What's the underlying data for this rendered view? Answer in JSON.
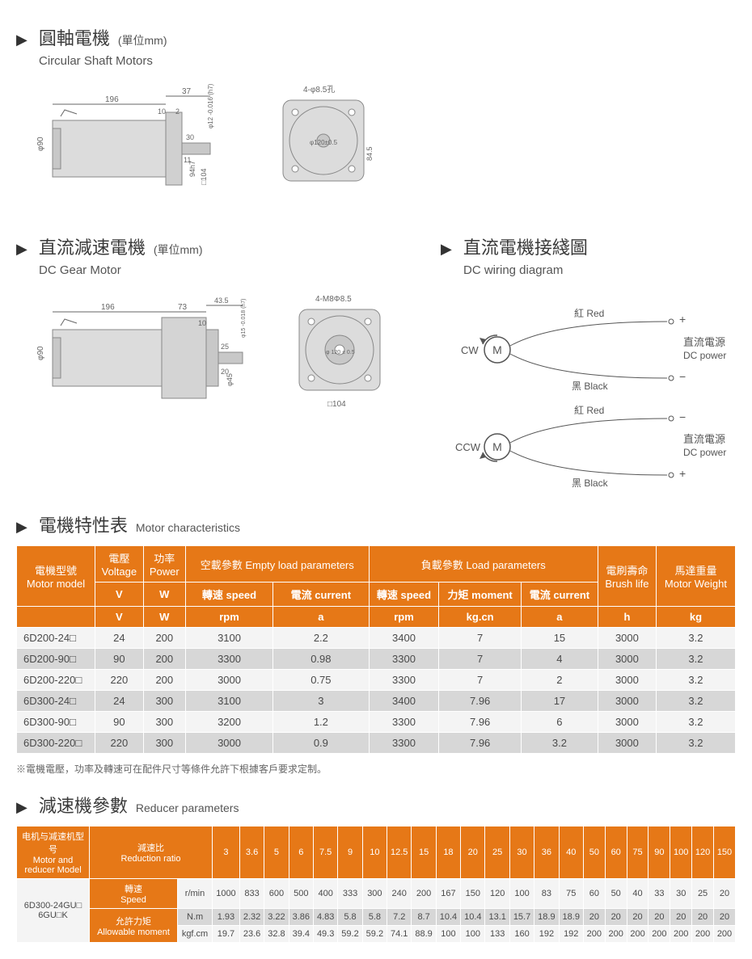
{
  "section1": {
    "title_cn": "圓軸電機",
    "unit": "(單位mm)",
    "title_en": "Circular Shaft Motors",
    "dims": {
      "len_total": "196",
      "len_flange": "37",
      "len_a": "10",
      "len_b": "2",
      "len_shaft": "30",
      "shaft_tol": "φ12 -0.016 (h7)",
      "shaft_h": "11",
      "flange_h": "94h7",
      "body_d": "φ90",
      "flange_sq": "□104",
      "holes": "4-φ8.5孔",
      "pcd": "φ120±0.5",
      "face_w": "84.5"
    }
  },
  "section2": {
    "title_cn": "直流減速電機",
    "unit": "(單位mm)",
    "title_en": "DC Gear Motor",
    "dims": {
      "len_total": "196",
      "len_gear": "73",
      "len_flange": "43.5",
      "len_a": "10",
      "len_shaft": "25",
      "shaft_tol": "φ15 -0.018 (h7)",
      "shaft_h": "20",
      "boss_d": "φ45",
      "body_d": "φ90",
      "flange_sq": "□104",
      "holes": "4-M8Φ8.5",
      "pcd": "φ 120 ± 0.5"
    }
  },
  "section3": {
    "title_cn": "直流電機接綫圖",
    "title_en": "DC wiring diagram",
    "labels": {
      "red": "紅 Red",
      "black": "黑 Black",
      "power_cn": "直流電源",
      "power_en": "DC power",
      "cw": "CW",
      "ccw": "CCW",
      "motor": "M",
      "plus": "+",
      "minus": "−"
    }
  },
  "section4": {
    "title_cn": "電機特性表",
    "title_en": "Motor characteristics",
    "headers": {
      "model_cn": "電機型號",
      "model_en": "Motor model",
      "voltage_cn": "電壓",
      "voltage_en": "Voltage",
      "power_cn": "功率",
      "power_en": "Power",
      "empty_cn": "空載參數 Empty load parameters",
      "load_cn": "負載參數 Load parameters",
      "speed_cn": "轉速 speed",
      "current_cn": "電流 current",
      "moment_cn": "力矩 moment",
      "brush_cn": "電刷壽命",
      "brush_en": "Brush life",
      "weight_cn": "馬達重量",
      "weight_en": "Motor Weight",
      "unit_v": "V",
      "unit_w": "W",
      "unit_rpm": "rpm",
      "unit_a": "a",
      "unit_kgcn": "kg.cn",
      "unit_h": "h",
      "unit_kg": "kg"
    },
    "rows": [
      {
        "model": "6D200-24□",
        "v": "24",
        "w": "200",
        "es": "3100",
        "ec": "2.2",
        "ls": "3400",
        "lm": "7",
        "lc": "15",
        "bl": "3000",
        "wt": "3.2"
      },
      {
        "model": "6D200-90□",
        "v": "90",
        "w": "200",
        "es": "3300",
        "ec": "0.98",
        "ls": "3300",
        "lm": "7",
        "lc": "4",
        "bl": "3000",
        "wt": "3.2"
      },
      {
        "model": "6D200-220□",
        "v": "220",
        "w": "200",
        "es": "3000",
        "ec": "0.75",
        "ls": "3300",
        "lm": "7",
        "lc": "2",
        "bl": "3000",
        "wt": "3.2"
      },
      {
        "model": "6D300-24□",
        "v": "24",
        "w": "300",
        "es": "3100",
        "ec": "3",
        "ls": "3400",
        "lm": "7.96",
        "lc": "17",
        "bl": "3000",
        "wt": "3.2"
      },
      {
        "model": "6D300-90□",
        "v": "90",
        "w": "300",
        "es": "3200",
        "ec": "1.2",
        "ls": "3300",
        "lm": "7.96",
        "lc": "6",
        "bl": "3000",
        "wt": "3.2"
      },
      {
        "model": "6D300-220□",
        "v": "220",
        "w": "300",
        "es": "3000",
        "ec": "0.9",
        "ls": "3300",
        "lm": "7.96",
        "lc": "3.2",
        "bl": "3000",
        "wt": "3.2"
      }
    ],
    "note": "※電機電壓，功率及轉速可在配件尺寸等條件允許下根據客戶要求定制。"
  },
  "section5": {
    "title_cn": "減速機參數",
    "title_en": "Reducer parameters",
    "headers": {
      "model_cn": "电机与减速机型号",
      "model_en": "Motor and reducer Model",
      "ratio_cn": "減速比",
      "ratio_en": "Reduction ratio",
      "speed_cn": "轉速",
      "speed_en": "Speed",
      "moment_cn": "允許力矩",
      "moment_en": "Allowable moment",
      "unit_rmin": "r/min",
      "unit_nm": "N.m",
      "unit_kgfcm": "kgf.cm"
    },
    "ratios": [
      "3",
      "3.6",
      "5",
      "6",
      "7.5",
      "9",
      "10",
      "12.5",
      "15",
      "18",
      "20",
      "25",
      "30",
      "36",
      "40",
      "50",
      "60",
      "75",
      "90",
      "100",
      "120",
      "150"
    ],
    "model": "6D300-24GU□\n6GU□K",
    "speed_row": [
      "1000",
      "833",
      "600",
      "500",
      "400",
      "333",
      "300",
      "240",
      "200",
      "167",
      "150",
      "120",
      "100",
      "83",
      "75",
      "60",
      "50",
      "40",
      "33",
      "30",
      "25",
      "20"
    ],
    "nm_row": [
      "1.93",
      "2.32",
      "3.22",
      "3.86",
      "4.83",
      "5.8",
      "5.8",
      "7.2",
      "8.7",
      "10.4",
      "10.4",
      "13.1",
      "15.7",
      "18.9",
      "18.9",
      "20",
      "20",
      "20",
      "20",
      "20",
      "20",
      "20"
    ],
    "kgfcm_row": [
      "19.7",
      "23.6",
      "32.8",
      "39.4",
      "49.3",
      "59.2",
      "59.2",
      "74.1",
      "88.9",
      "100",
      "100",
      "133",
      "160",
      "192",
      "192",
      "200",
      "200",
      "200",
      "200",
      "200",
      "200",
      "200"
    ]
  },
  "colors": {
    "header_bg": "#e67817",
    "header_text": "#ffffff",
    "row_odd": "#f4f4f4",
    "row_even": "#d7d7d7",
    "text": "#4a4a4a",
    "diagram_fill": "#dcdcdc",
    "diagram_stroke": "#888888"
  }
}
